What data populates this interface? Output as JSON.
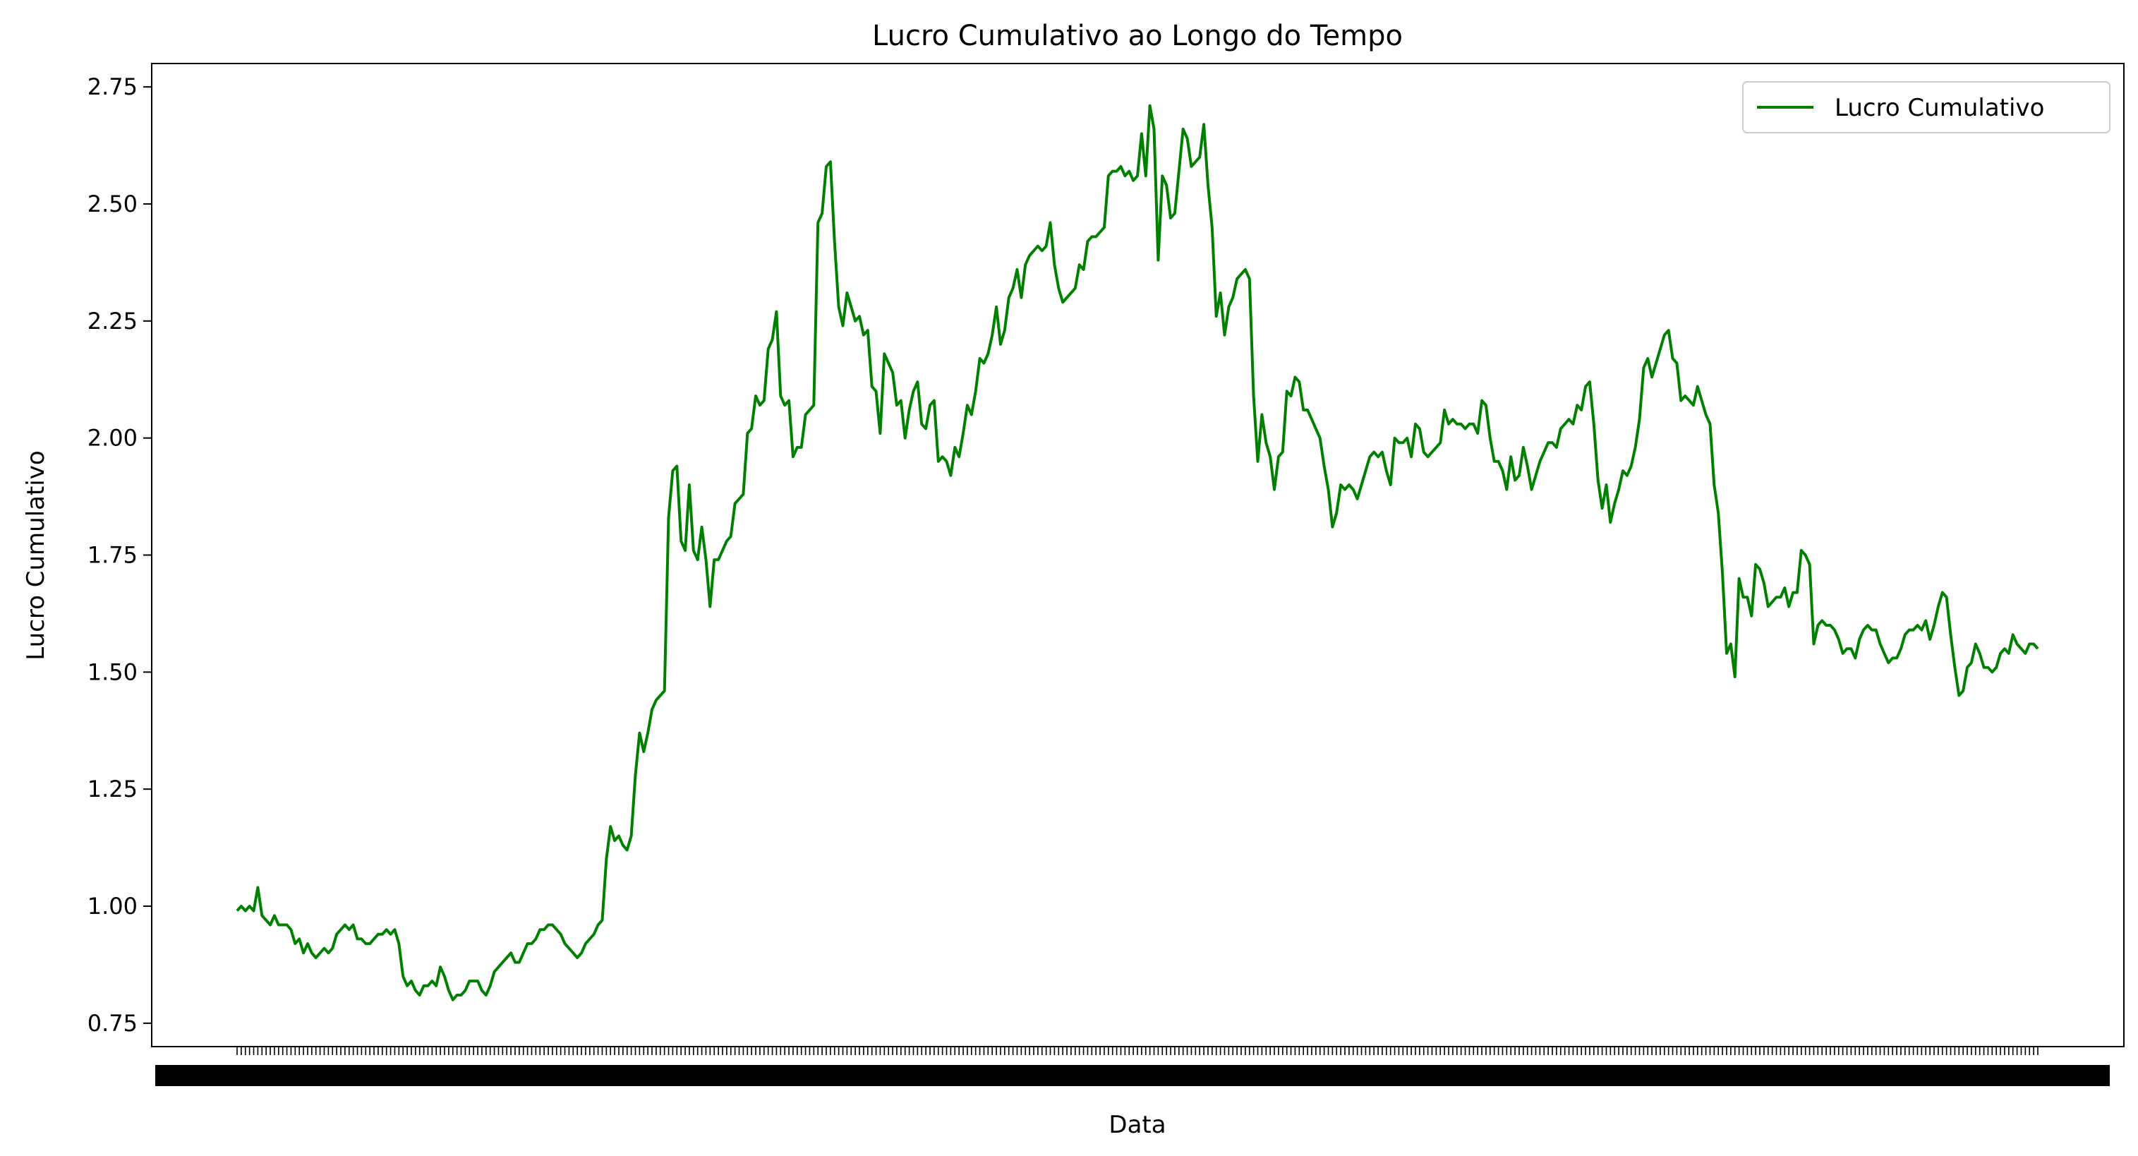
{
  "chart_data": {
    "type": "line",
    "title": "Lucro Cumulativo ao Longo do Tempo",
    "xlabel": "Data",
    "ylabel": "Lucro Cumulativo",
    "ylim": [
      0.7,
      2.8
    ],
    "yticks": [
      "0.75",
      "1.00",
      "1.25",
      "1.50",
      "1.75",
      "2.00",
      "2.25",
      "2.50",
      "2.75"
    ],
    "legend": "upper-right",
    "grid": false,
    "series": [
      {
        "name": "Lucro Cumulativo",
        "color": "#008000",
        "values": [
          0.99,
          1.0,
          0.99,
          1.0,
          0.99,
          1.04,
          0.98,
          0.97,
          0.96,
          0.98,
          0.96,
          0.96,
          0.96,
          0.95,
          0.92,
          0.93,
          0.9,
          0.92,
          0.9,
          0.89,
          0.9,
          0.91,
          0.9,
          0.91,
          0.94,
          0.95,
          0.96,
          0.95,
          0.96,
          0.93,
          0.93,
          0.92,
          0.92,
          0.93,
          0.94,
          0.94,
          0.95,
          0.94,
          0.95,
          0.92,
          0.85,
          0.83,
          0.84,
          0.82,
          0.81,
          0.83,
          0.83,
          0.84,
          0.83,
          0.87,
          0.85,
          0.82,
          0.8,
          0.81,
          0.81,
          0.82,
          0.84,
          0.84,
          0.84,
          0.82,
          0.81,
          0.83,
          0.86,
          0.87,
          0.88,
          0.89,
          0.9,
          0.88,
          0.88,
          0.9,
          0.92,
          0.92,
          0.93,
          0.95,
          0.95,
          0.96,
          0.96,
          0.95,
          0.94,
          0.92,
          0.91,
          0.9,
          0.89,
          0.9,
          0.92,
          0.93,
          0.94,
          0.96,
          0.97,
          1.1,
          1.17,
          1.14,
          1.15,
          1.13,
          1.12,
          1.15,
          1.28,
          1.37,
          1.33,
          1.37,
          1.42,
          1.44,
          1.45,
          1.46,
          1.83,
          1.93,
          1.94,
          1.78,
          1.76,
          1.9,
          1.76,
          1.74,
          1.81,
          1.74,
          1.64,
          1.74,
          1.74,
          1.76,
          1.78,
          1.79,
          1.86,
          1.87,
          1.88,
          2.01,
          2.02,
          2.09,
          2.07,
          2.08,
          2.19,
          2.21,
          2.27,
          2.09,
          2.07,
          2.08,
          1.96,
          1.98,
          1.98,
          2.05,
          2.06,
          2.07,
          2.46,
          2.48,
          2.58,
          2.59,
          2.42,
          2.28,
          2.24,
          2.31,
          2.28,
          2.25,
          2.26,
          2.22,
          2.23,
          2.11,
          2.1,
          2.01,
          2.18,
          2.16,
          2.14,
          2.07,
          2.08,
          2.0,
          2.06,
          2.1,
          2.12,
          2.03,
          2.02,
          2.07,
          2.08,
          1.95,
          1.96,
          1.95,
          1.92,
          1.98,
          1.96,
          2.01,
          2.07,
          2.05,
          2.1,
          2.17,
          2.16,
          2.18,
          2.22,
          2.28,
          2.2,
          2.23,
          2.3,
          2.32,
          2.36,
          2.3,
          2.37,
          2.39,
          2.4,
          2.41,
          2.4,
          2.41,
          2.46,
          2.37,
          2.32,
          2.29,
          2.3,
          2.31,
          2.32,
          2.37,
          2.36,
          2.42,
          2.43,
          2.43,
          2.44,
          2.45,
          2.56,
          2.57,
          2.57,
          2.58,
          2.56,
          2.57,
          2.55,
          2.56,
          2.65,
          2.56,
          2.71,
          2.66,
          2.38,
          2.56,
          2.54,
          2.47,
          2.48,
          2.57,
          2.66,
          2.64,
          2.58,
          2.59,
          2.6,
          2.67,
          2.54,
          2.45,
          2.26,
          2.31,
          2.22,
          2.28,
          2.3,
          2.34,
          2.35,
          2.36,
          2.34,
          2.09,
          1.95,
          2.05,
          1.99,
          1.96,
          1.89,
          1.96,
          1.97,
          2.1,
          2.09,
          2.13,
          2.12,
          2.06,
          2.06,
          2.04,
          2.02,
          2.0,
          1.94,
          1.89,
          1.81,
          1.84,
          1.9,
          1.89,
          1.9,
          1.89,
          1.87,
          1.9,
          1.93,
          1.96,
          1.97,
          1.96,
          1.97,
          1.93,
          1.9,
          2.0,
          1.99,
          1.99,
          2.0,
          1.96,
          2.03,
          2.02,
          1.97,
          1.96,
          1.97,
          1.98,
          1.99,
          2.06,
          2.03,
          2.04,
          2.03,
          2.03,
          2.02,
          2.03,
          2.03,
          2.01,
          2.08,
          2.07,
          2.0,
          1.95,
          1.95,
          1.93,
          1.89,
          1.96,
          1.91,
          1.92,
          1.98,
          1.94,
          1.89,
          1.92,
          1.95,
          1.97,
          1.99,
          1.99,
          1.98,
          2.02,
          2.03,
          2.04,
          2.03,
          2.07,
          2.06,
          2.11,
          2.12,
          2.03,
          1.91,
          1.85,
          1.9,
          1.82,
          1.86,
          1.89,
          1.93,
          1.92,
          1.94,
          1.98,
          2.04,
          2.15,
          2.17,
          2.13,
          2.16,
          2.19,
          2.22,
          2.23,
          2.17,
          2.16,
          2.08,
          2.09,
          2.08,
          2.07,
          2.11,
          2.08,
          2.05,
          2.03,
          1.9,
          1.84,
          1.71,
          1.54,
          1.56,
          1.49,
          1.7,
          1.66,
          1.66,
          1.62,
          1.73,
          1.72,
          1.69,
          1.64,
          1.65,
          1.66,
          1.66,
          1.68,
          1.64,
          1.67,
          1.67,
          1.76,
          1.75,
          1.73,
          1.56,
          1.6,
          1.61,
          1.6,
          1.6,
          1.59,
          1.57,
          1.54,
          1.55,
          1.55,
          1.53,
          1.57,
          1.59,
          1.6,
          1.59,
          1.59,
          1.56,
          1.54,
          1.52,
          1.53,
          1.53,
          1.55,
          1.58,
          1.59,
          1.59,
          1.6,
          1.59,
          1.61,
          1.57,
          1.6,
          1.64,
          1.67,
          1.66,
          1.58,
          1.51,
          1.45,
          1.46,
          1.51,
          1.52,
          1.56,
          1.54,
          1.51,
          1.51,
          1.5,
          1.51,
          1.54,
          1.55,
          1.54,
          1.58,
          1.56,
          1.55,
          1.54,
          1.56,
          1.56,
          1.55
        ]
      }
    ]
  }
}
